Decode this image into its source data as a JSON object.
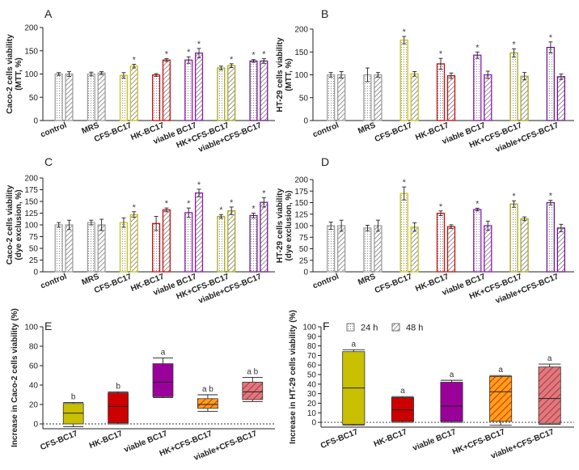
{
  "legend": {
    "h24": "24 h",
    "h48": "48 h"
  },
  "colors": {
    "control": "#9e9e9e",
    "MRS": "#9e9e9e",
    "CFS-BC17": "#c8c21a",
    "HK-BC17": "#c80f0f",
    "viable BC17": "#8e15b4",
    "HK+CFS-BC17": "#a8a81e",
    "viable+CFS-BC17": "#6e1a8c",
    "box_CFS": "#c8c000",
    "box_HK": "#cc0000",
    "box_viable": "#9a009a",
    "box_HKCFS": "#ff9f1a",
    "box_HKCFS_stripe": "#cc3300",
    "box_viableCFS": "#e07a7a",
    "box_viableCFS_stripe": "#b03050"
  },
  "chart_data": [
    {
      "id": "A",
      "panel_label": "A",
      "type": "bar",
      "ylabel": [
        "Caco-2 cells viability",
        "(MTT, %)"
      ],
      "ylim": [
        0,
        200
      ],
      "yticks": [
        "0",
        "50",
        "100",
        "150",
        "200"
      ],
      "categories": [
        "control",
        "MRS",
        "CFS-BC17",
        "HK-BC17",
        "viable BC17",
        "HK+CFS-BC17",
        "viable+CFS-BC17"
      ],
      "series": [
        {
          "name": "24 h",
          "values": [
            100,
            100,
            97,
            98,
            130,
            113,
            128
          ],
          "errors": [
            3,
            4,
            6,
            3,
            7,
            4,
            3
          ],
          "significant": [
            false,
            false,
            false,
            false,
            true,
            false,
            true
          ]
        },
        {
          "name": "48 h",
          "values": [
            100,
            102,
            117,
            130,
            145,
            118,
            128
          ],
          "errors": [
            5,
            3,
            4,
            3,
            10,
            4,
            5
          ],
          "significant": [
            false,
            false,
            true,
            true,
            true,
            true,
            true
          ]
        }
      ],
      "significance_mark": "*"
    },
    {
      "id": "B",
      "panel_label": "B",
      "type": "bar",
      "ylabel": [
        "HT-29 cells viability",
        "(MTT, %)"
      ],
      "ylim": [
        0,
        200
      ],
      "yticks": [
        "0",
        "50",
        "100",
        "150",
        "200"
      ],
      "categories": [
        "control",
        "MRS",
        "CFS-BC17",
        "HK-BC17",
        "viable BC17",
        "HK+CFS-BC17",
        "viable+CFS-BC17"
      ],
      "series": [
        {
          "name": "24 h",
          "values": [
            100,
            100,
            176,
            124,
            143,
            148,
            160
          ],
          "errors": [
            5,
            15,
            8,
            12,
            7,
            9,
            12
          ],
          "significant": [
            false,
            false,
            true,
            true,
            true,
            true,
            true
          ]
        },
        {
          "name": "48 h",
          "values": [
            100,
            100,
            102,
            98,
            100,
            97,
            96
          ],
          "errors": [
            7,
            5,
            5,
            6,
            8,
            8,
            6
          ],
          "significant": [
            false,
            false,
            false,
            false,
            false,
            false,
            false
          ]
        }
      ],
      "significance_mark": "*"
    },
    {
      "id": "C",
      "panel_label": "C",
      "type": "bar",
      "ylabel": [
        "Caco-2 cells viability",
        "(dye exclusion, %)"
      ],
      "ylim": [
        0,
        200
      ],
      "yticks": [
        "0",
        "25",
        "50",
        "75",
        "100",
        "125",
        "150",
        "175",
        "200"
      ],
      "categories": [
        "control",
        "MRS",
        "CFS-BC17",
        "HK-BC17",
        "viable BC17",
        "HK+CFS-BC17",
        "viable+CFS-BC17"
      ],
      "series": [
        {
          "name": "24 h",
          "values": [
            100,
            105,
            105,
            103,
            126,
            118,
            120
          ],
          "errors": [
            5,
            5,
            10,
            15,
            10,
            4,
            5
          ],
          "significant": [
            false,
            false,
            false,
            false,
            true,
            true,
            true
          ]
        },
        {
          "name": "48 h",
          "values": [
            100,
            100,
            122,
            132,
            168,
            130,
            148
          ],
          "errors": [
            10,
            12,
            6,
            4,
            8,
            8,
            10
          ],
          "significant": [
            false,
            false,
            true,
            true,
            true,
            true,
            true
          ]
        }
      ],
      "significance_mark": "*"
    },
    {
      "id": "D",
      "panel_label": "D",
      "type": "bar",
      "ylabel": [
        "HT-29 cells viability",
        "(dye exclusion, %)"
      ],
      "ylim": [
        0,
        200
      ],
      "yticks": [
        "0",
        "25",
        "50",
        "75",
        "100",
        "125",
        "150",
        "175",
        "200"
      ],
      "categories": [
        "control",
        "MRS",
        "CFS-BC17",
        "HK-BC17",
        "viable BC17",
        "HK+CFS-BC17",
        "viable+CFS-BC17"
      ],
      "series": [
        {
          "name": "24 h",
          "values": [
            100,
            95,
            170,
            127,
            135,
            147,
            150
          ],
          "errors": [
            8,
            6,
            14,
            5,
            3,
            7,
            5
          ],
          "significant": [
            false,
            false,
            true,
            true,
            true,
            true,
            true
          ]
        },
        {
          "name": "48 h",
          "values": [
            100,
            100,
            97,
            98,
            100,
            115,
            95
          ],
          "errors": [
            12,
            12,
            9,
            4,
            10,
            4,
            8
          ],
          "significant": [
            false,
            false,
            false,
            false,
            false,
            false,
            false
          ]
        }
      ],
      "significance_mark": "*"
    },
    {
      "id": "E",
      "panel_label": "E",
      "type": "box",
      "ylabel": "Increase in Caco-2 cells viability (%)",
      "ylim": [
        -5,
        100
      ],
      "yticks": [
        "0",
        "20",
        "40",
        "60",
        "80",
        "100"
      ],
      "categories": [
        "CFS-BC17",
        "HK-BC17",
        "viable BC17",
        "HK+CFS-BC17",
        "viable+CFS-BC17"
      ],
      "boxes": [
        {
          "min": -3,
          "q1": 0,
          "median": 11,
          "q3": 21,
          "max": 22,
          "letter": "b"
        },
        {
          "min": 0,
          "q1": 1,
          "median": 18,
          "q3": 32,
          "max": 33,
          "letter": "b"
        },
        {
          "min": 27,
          "q1": 28,
          "median": 43,
          "q3": 62,
          "max": 68,
          "letter": "a"
        },
        {
          "min": 13,
          "q1": 16,
          "median": 20,
          "q3": 26,
          "max": 30,
          "letter": "a b"
        },
        {
          "min": 23,
          "q1": 25,
          "median": 33,
          "q3": 43,
          "max": 48,
          "letter": "a b"
        }
      ],
      "reference_line": 0
    },
    {
      "id": "F",
      "panel_label": "F",
      "type": "box",
      "ylabel": "Increase in HT-29 cells viability (%)",
      "ylim": [
        -5,
        100
      ],
      "yticks": [
        "0",
        "10",
        "20",
        "30",
        "40",
        "50",
        "60",
        "70",
        "80",
        "90",
        "100"
      ],
      "categories": [
        "CFS-BC17",
        "HK-BC17",
        "viable BC17",
        "HK+CFS-BC17",
        "viable+CFS-BC17"
      ],
      "boxes": [
        {
          "min": -3,
          "q1": -2,
          "median": 36,
          "q3": 74,
          "max": 76,
          "letter": "a"
        },
        {
          "min": 0,
          "q1": 1,
          "median": 13,
          "q3": 26,
          "max": 27,
          "letter": "a"
        },
        {
          "min": 0,
          "q1": 1,
          "median": 17,
          "q3": 42,
          "max": 44,
          "letter": "a"
        },
        {
          "min": -3,
          "q1": 1,
          "median": 32,
          "q3": 48,
          "max": 49,
          "letter": "a"
        },
        {
          "min": -2,
          "q1": -1,
          "median": 25,
          "q3": 58,
          "max": 61,
          "letter": "a"
        }
      ],
      "reference_line": 0
    }
  ]
}
